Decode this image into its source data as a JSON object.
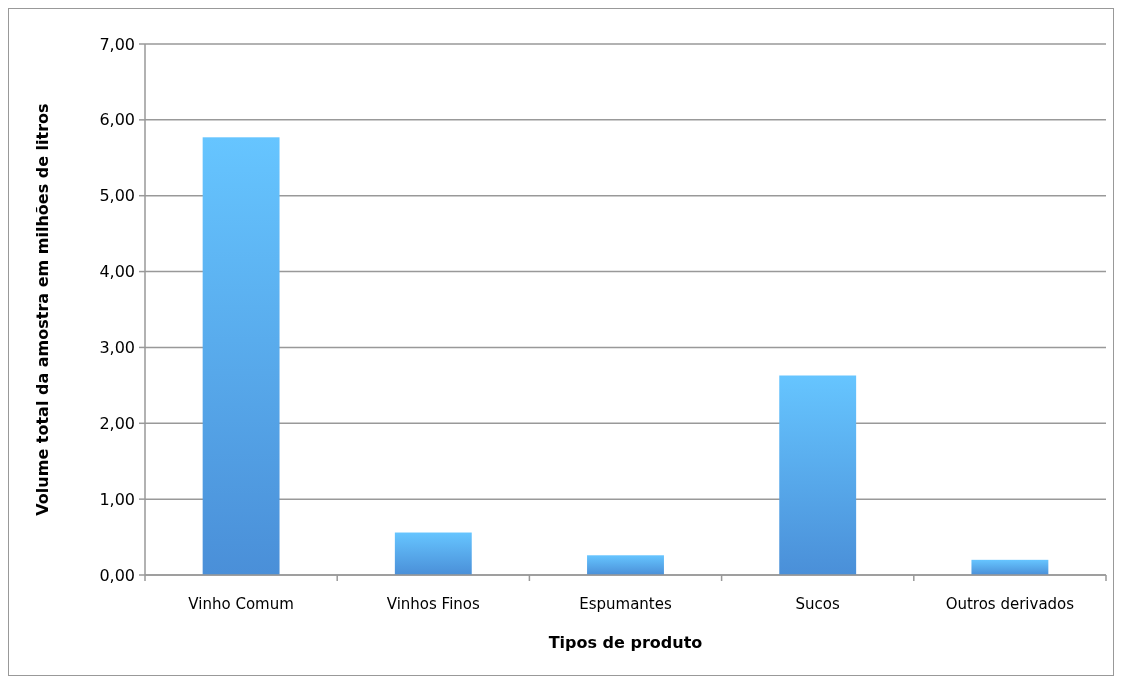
{
  "chart_data": {
    "type": "bar",
    "xlabel": "Tipos de produto",
    "ylabel": "Volume total da amostra em milhões de litros",
    "categories": [
      "Vinho Comum",
      "Vinhos Finos",
      "Espumantes",
      "Sucos",
      "Outros derivados"
    ],
    "values": [
      5.77,
      0.56,
      0.26,
      2.63,
      0.2
    ],
    "color": "#4a8fd8",
    "ylim": [
      0,
      7
    ],
    "yticks": [
      {
        "value": 0,
        "label": "0,00"
      },
      {
        "value": 1,
        "label": "1,00"
      },
      {
        "value": 2,
        "label": "2,00"
      },
      {
        "value": 3,
        "label": "3,00"
      },
      {
        "value": 4,
        "label": "4,00"
      },
      {
        "value": 5,
        "label": "5,00"
      },
      {
        "value": 6,
        "label": "6,00"
      },
      {
        "value": 7,
        "label": "7,00"
      }
    ],
    "grid": "y"
  }
}
